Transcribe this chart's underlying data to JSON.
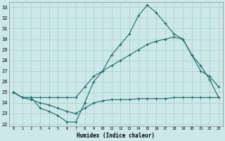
{
  "xlabel": "Humidex (Indice chaleur)",
  "xlim": [
    -0.5,
    23.5
  ],
  "ylim": [
    21.8,
    33.5
  ],
  "yticks": [
    22,
    23,
    24,
    25,
    26,
    27,
    28,
    29,
    30,
    31,
    32,
    33
  ],
  "xticks": [
    0,
    1,
    2,
    3,
    4,
    5,
    6,
    7,
    8,
    9,
    10,
    11,
    12,
    13,
    14,
    15,
    16,
    17,
    18,
    19,
    20,
    21,
    22,
    23
  ],
  "bg_color": "#cce8e8",
  "line_color": "#1a6b6b",
  "grid_color": "#aacece",
  "line1_x": [
    0,
    1,
    2,
    3,
    4,
    5,
    6,
    7,
    8,
    9,
    10,
    11,
    12,
    13,
    14,
    15,
    16,
    17,
    18,
    19,
    20,
    21,
    22,
    23
  ],
  "line1_y": [
    25.0,
    24.5,
    24.5,
    23.5,
    23.2,
    22.8,
    22.2,
    22.2,
    24.0,
    26.0,
    27.0,
    28.5,
    29.5,
    30.5,
    32.2,
    33.2,
    32.5,
    31.5,
    30.5,
    30.0,
    28.5,
    27.0,
    26.5,
    25.5
  ],
  "line2_x": [
    0,
    1,
    2,
    3,
    4,
    5,
    6,
    7,
    8,
    9,
    10,
    11,
    12,
    13,
    14,
    15,
    16,
    17,
    18,
    19,
    20,
    21,
    22,
    23
  ],
  "line2_y": [
    25.0,
    24.5,
    24.5,
    24.5,
    24.5,
    24.5,
    24.5,
    24.5,
    25.5,
    26.5,
    27.0,
    27.5,
    28.0,
    28.5,
    29.0,
    29.5,
    29.8,
    30.0,
    30.2,
    30.0,
    28.5,
    27.5,
    26.2,
    24.5
  ],
  "line3_x": [
    0,
    1,
    2,
    3,
    4,
    5,
    6,
    7,
    8,
    9,
    10,
    11,
    12,
    13,
    14,
    15,
    16,
    17,
    18,
    19,
    20,
    21,
    22,
    23
  ],
  "line3_y": [
    25.0,
    24.5,
    24.3,
    24.0,
    23.8,
    23.5,
    23.2,
    23.0,
    23.5,
    24.0,
    24.2,
    24.3,
    24.3,
    24.3,
    24.4,
    24.4,
    24.4,
    24.4,
    24.5,
    24.5,
    24.5,
    24.5,
    24.5,
    24.5
  ]
}
